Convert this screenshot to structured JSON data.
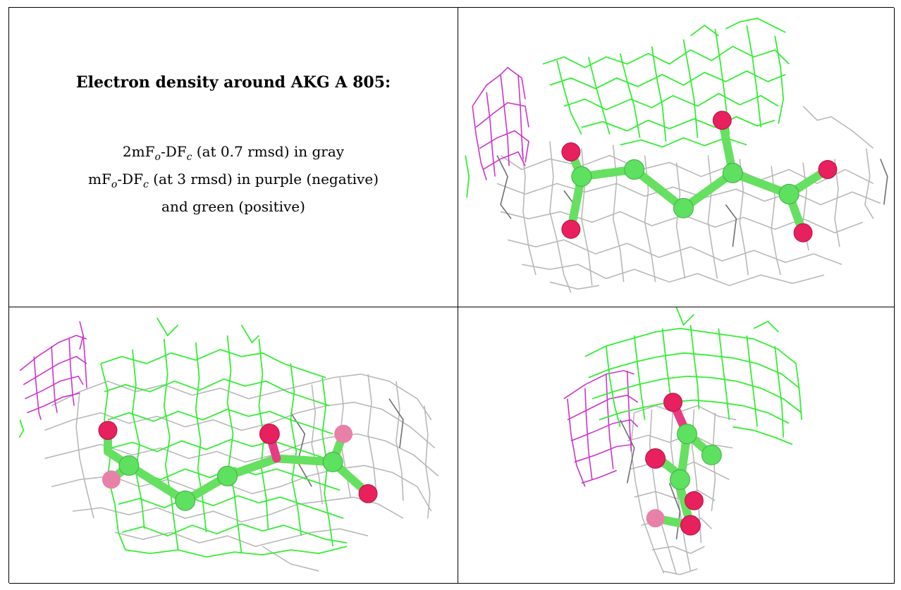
{
  "panel_title": "Electron density around AKG A 805:",
  "legend": {
    "line1_pre": "2mF",
    "line1_sub1": "o",
    "line1_mid": "-DF",
    "line1_sub2": "c",
    "line1_post": " (at 0.7 rmsd) in gray",
    "line2_pre": "mF",
    "line2_sub1": "o",
    "line2_mid": "-DF",
    "line2_sub2": "c",
    "line2_post": " (at 3 rmsd) in purple (negative)",
    "line3": "and green (positive)"
  },
  "colors": {
    "map_2fofc": "#b8b8b8",
    "map_fofc_positive": "#33ee33",
    "map_fofc_negative": "#cc33cc",
    "carbon": "#5ee060",
    "oxygen": "#e8205e"
  },
  "views": [
    {
      "name": "view-top-right",
      "ligand": "AKG A 805"
    },
    {
      "name": "view-bottom-left",
      "ligand": "AKG A 805"
    },
    {
      "name": "view-bottom-right",
      "ligand": "AKG A 805"
    }
  ]
}
